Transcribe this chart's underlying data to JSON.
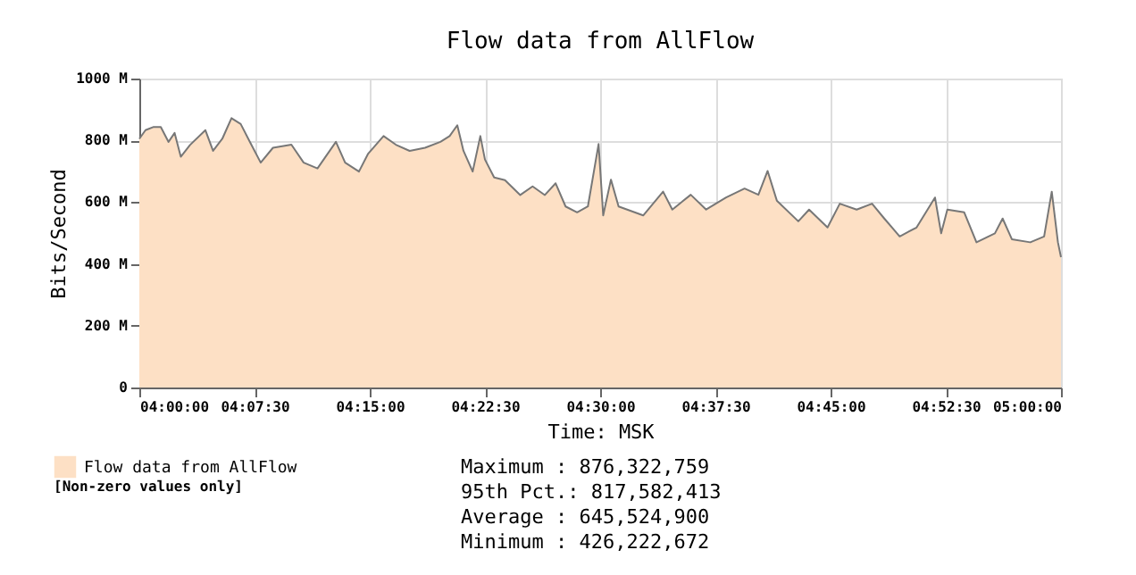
{
  "chart_data": {
    "type": "area",
    "title": "Flow data from AllFlow",
    "xlabel": "Time: MSK",
    "ylabel": "Bits/Second",
    "xlim": [
      4.0,
      5.0
    ],
    "xticks": [
      {
        "value": 4.0,
        "label": "04:00:00"
      },
      {
        "value": 4.125,
        "label": "04:07:30"
      },
      {
        "value": 4.25,
        "label": "04:15:00"
      },
      {
        "value": 4.375,
        "label": "04:22:30"
      },
      {
        "value": 4.5,
        "label": "04:30:00"
      },
      {
        "value": 4.625,
        "label": "04:37:30"
      },
      {
        "value": 4.75,
        "label": "04:45:00"
      },
      {
        "value": 4.875,
        "label": "04:52:30"
      },
      {
        "value": 5.0,
        "label": "05:00:00"
      }
    ],
    "ylim": [
      0,
      1000
    ],
    "yticks": [
      0,
      {
        "value": 200,
        "label": "200 M"
      },
      {
        "value": 400,
        "label": "400 M"
      },
      {
        "value": 600,
        "label": "600 M"
      },
      {
        "value": 800,
        "label": "800 M"
      },
      {
        "value": 1000,
        "label": "1000 M"
      }
    ],
    "grid": true,
    "legend": "bottom left",
    "series": [
      {
        "name": "Flow data from AllFlow",
        "color": "#fde0c5",
        "x": [
          4.0,
          4.0067,
          4.015,
          4.0233,
          4.0317,
          4.0383,
          4.045,
          4.055,
          4.0717,
          4.08,
          4.09,
          4.1,
          4.11,
          4.12,
          4.1317,
          4.145,
          4.165,
          4.1783,
          4.1933,
          4.2133,
          4.2233,
          4.2383,
          4.2483,
          4.265,
          4.2783,
          4.2933,
          4.31,
          4.3267,
          4.3367,
          4.345,
          4.3517,
          4.3617,
          4.37,
          4.375,
          4.385,
          4.3967,
          4.4133,
          4.4267,
          4.44,
          4.4517,
          4.4625,
          4.475,
          4.4867,
          4.4983,
          4.5033,
          4.5117,
          4.52,
          4.5467,
          4.5683,
          4.5783,
          4.5983,
          4.615,
          4.6367,
          4.6567,
          4.6717,
          4.6817,
          4.6917,
          4.715,
          4.7267,
          4.7467,
          4.76,
          4.7783,
          4.795,
          4.8083,
          4.825,
          4.8433,
          4.8633,
          4.87,
          4.8767,
          4.895,
          4.9083,
          4.9283,
          4.9367,
          4.9467,
          4.9667,
          4.9817,
          4.99,
          4.9967,
          5.0
        ],
        "values": [
          805,
          833,
          843,
          843,
          795,
          824,
          747,
          785,
          833,
          766,
          805,
          872,
          853,
          795,
          728,
          776,
          786,
          728,
          709,
          795,
          728,
          699,
          757,
          814,
          786,
          766,
          776,
          795,
          814,
          849,
          766,
          699,
          814,
          738,
          680,
          671,
          623,
          651,
          623,
          661,
          586,
          567,
          586,
          788,
          557,
          673,
          586,
          557,
          634,
          576,
          624,
          576,
          615,
          644,
          624,
          701,
          605,
          538,
          576,
          518,
          595,
          576,
          595,
          547,
          489,
          518,
          615,
          499,
          576,
          567,
          470,
          499,
          547,
          480,
          470,
          489,
          634,
          470,
          422
        ]
      }
    ],
    "annotations": [
      "[Non-zero values only]",
      "Maximum  : 876,322,759",
      "95th Pct.: 817,582,413",
      "Average  : 645,524,900",
      "Minimum  : 426,222,672"
    ]
  }
}
